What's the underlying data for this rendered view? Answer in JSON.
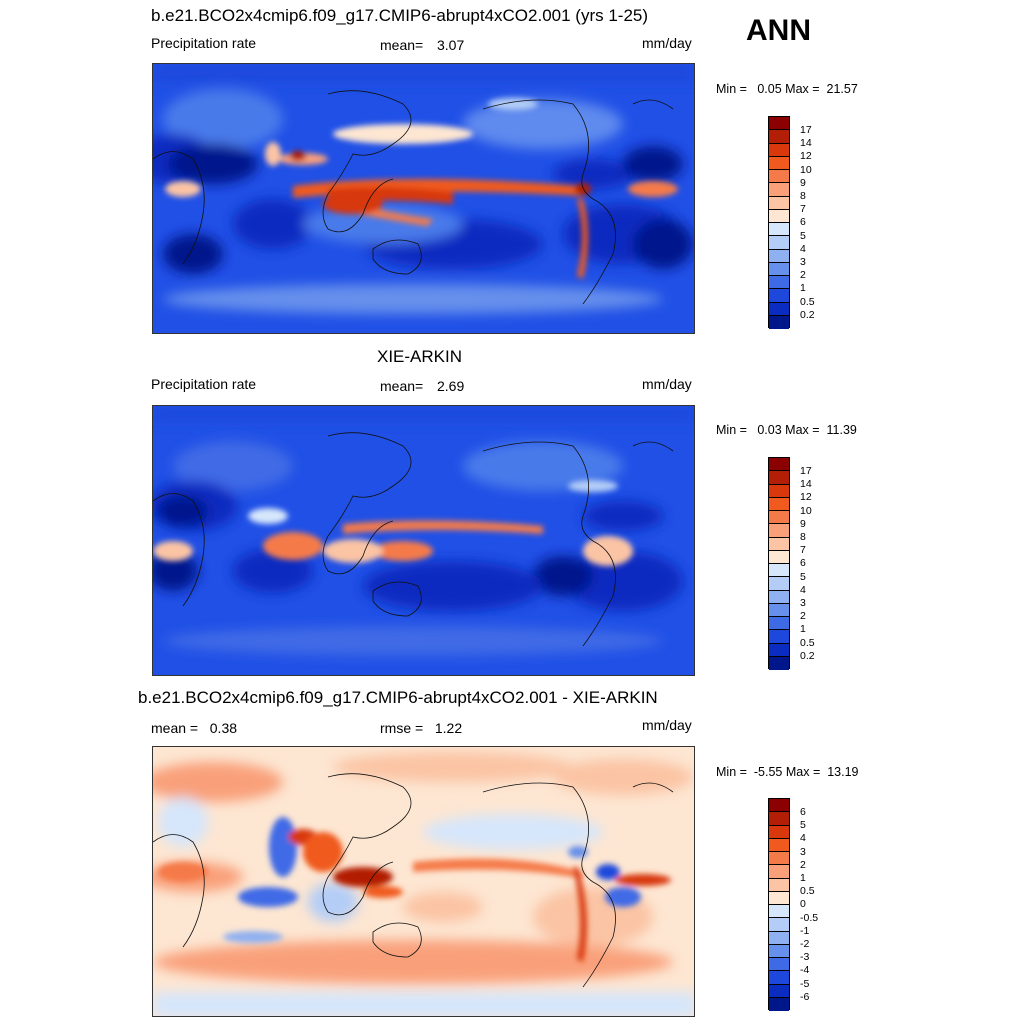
{
  "panel_top": {
    "title": "b.e21.BCO2x4cmip6.f09_g17.CMIP6-abrupt4xCO2.001 (yrs 1-25)",
    "left_label": "Precipitation rate",
    "mean_label": "mean=",
    "mean_value": "3.07",
    "units": "mm/day",
    "min_label": "Min =",
    "min_value": "0.05",
    "max_label": "Max =",
    "max_value": "21.57"
  },
  "season": "ANN",
  "panel_mid": {
    "title": "XIE-ARKIN",
    "left_label": "Precipitation rate",
    "mean_label": "mean=",
    "mean_value": "2.69",
    "units": "mm/day",
    "min_label": "Min =",
    "min_value": "0.03",
    "max_label": "Max =",
    "max_value": "11.39"
  },
  "panel_bot": {
    "title": "b.e21.BCO2x4cmip6.f09_g17.CMIP6-abrupt4xCO2.001 - XIE-ARKIN",
    "mean_label": "mean =",
    "mean_value": "0.38",
    "rmse_label": "rmse =",
    "rmse_value": "1.22",
    "units": "mm/day",
    "min_label": "Min =",
    "min_value": "-5.55",
    "max_label": "Max =",
    "max_value": "13.19"
  },
  "colorbar_precip": {
    "labels": [
      "17",
      "14",
      "12",
      "10",
      "9",
      "8",
      "7",
      "6",
      "5",
      "4",
      "3",
      "2",
      "1",
      "0.5",
      "0.2"
    ],
    "colors": [
      "#8b0000",
      "#b21e06",
      "#d8380c",
      "#f05a1e",
      "#f57a4a",
      "#f9a07a",
      "#fbc4a4",
      "#fde6d2",
      "#d6e6fb",
      "#b4cdf6",
      "#8fb0f1",
      "#6690ec",
      "#3f6ae6",
      "#1e48dc",
      "#0a2cc0",
      "#00178c"
    ]
  },
  "colorbar_diff": {
    "labels": [
      "6",
      "5",
      "4",
      "3",
      "2",
      "1",
      "0.5",
      "0",
      "-0.5",
      "-1",
      "-2",
      "-3",
      "-4",
      "-5",
      "-6"
    ],
    "colors": [
      "#8b0000",
      "#b21e06",
      "#d8380c",
      "#f05a1e",
      "#f57a4a",
      "#f9a07a",
      "#fbc4a4",
      "#fde6d2",
      "#d6e6fb",
      "#b4cdf6",
      "#8fb0f1",
      "#6690ec",
      "#3f6ae6",
      "#1e48dc",
      "#0a2cc0",
      "#00178c"
    ]
  }
}
